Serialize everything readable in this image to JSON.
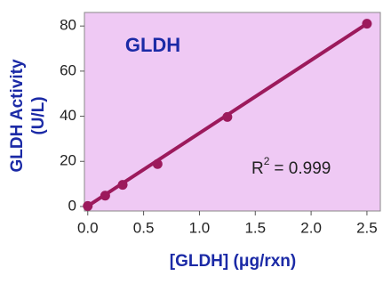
{
  "chart_data": {
    "type": "scatter",
    "title": "GLDH",
    "annotation": {
      "base": "R",
      "superscript": "2",
      "text": "= 0.999"
    },
    "x_label": "[GLDH] (μg/rxn)",
    "y_label": [
      "GLDH Activity",
      "(U/L)"
    ],
    "x": [
      0,
      0.156,
      0.3125,
      0.625,
      1.25,
      2.5
    ],
    "series": [
      {
        "color": "#9c1a5c",
        "values": [
          0.2,
          4.8,
          9.6,
          18.8,
          39.7,
          81
        ]
      }
    ],
    "fit_line": {
      "color": "#9c1a5c",
      "x": [
        0,
        2.5
      ],
      "values": [
        0.2,
        81
      ]
    },
    "background": "#efc9f4",
    "xlim": [
      -0.03,
      2.62
    ],
    "ylim": [
      -2,
      86
    ],
    "xticks": [
      {
        "value": 0,
        "label": "0.0"
      },
      0.5,
      {
        "value": 1,
        "label": "1.0"
      },
      1.5,
      {
        "value": 2,
        "label": "2.0"
      },
      2.5
    ],
    "yticks": [
      0,
      20,
      40,
      60,
      80
    ]
  }
}
